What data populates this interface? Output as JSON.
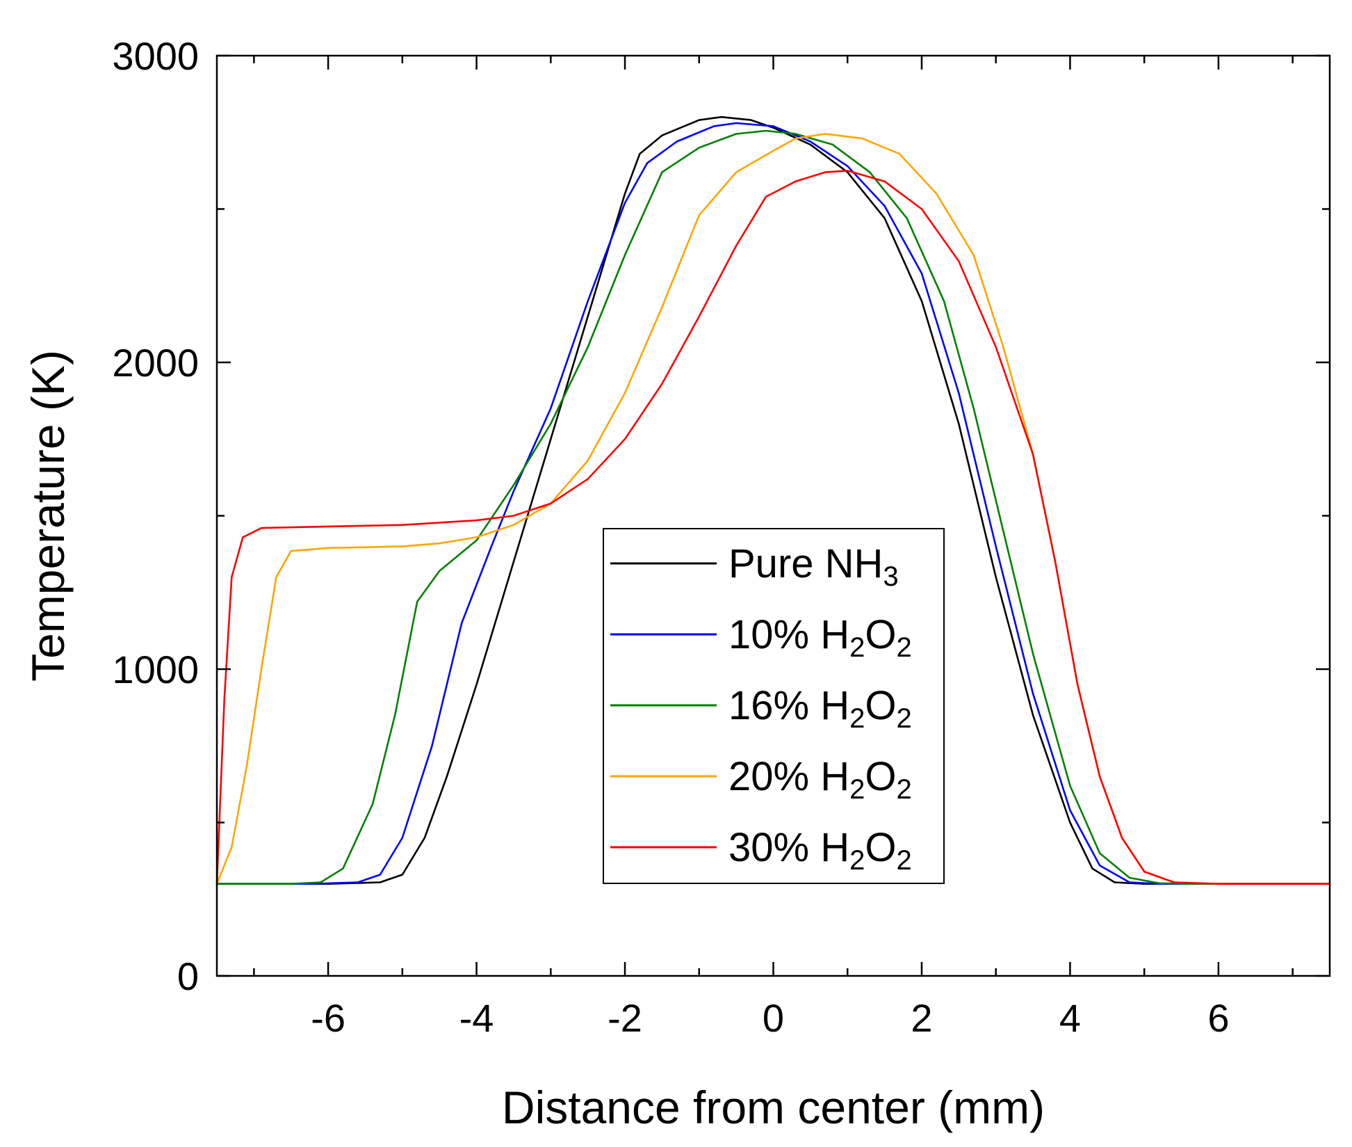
{
  "chart_data": {
    "type": "line",
    "title": "",
    "xlabel": "Distance from center (mm)",
    "ylabel": "Temperature (K)",
    "xlim": [
      -7.5,
      7.5
    ],
    "ylim": [
      0,
      3000
    ],
    "xticks": [
      -6,
      -4,
      -2,
      0,
      2,
      4,
      6
    ],
    "xtick_labels": [
      "-6",
      "-4",
      "-2",
      "0",
      "2",
      "4",
      "6"
    ],
    "yticks": [
      0,
      1000,
      2000,
      3000
    ],
    "ytick_labels": [
      "0",
      "1000",
      "2000",
      "3000"
    ],
    "minor_xtick_step": 1,
    "minor_ytick_step": 500,
    "grid": false,
    "legend_position": "center-right",
    "series": [
      {
        "name": "Pure NH3",
        "label_main": "Pure NH",
        "label_sub": "3",
        "label_tail": "",
        "color": "#000000",
        "points": [
          [
            -7.5,
            300
          ],
          [
            -6,
            300
          ],
          [
            -5.3,
            305
          ],
          [
            -5,
            330
          ],
          [
            -4.7,
            450
          ],
          [
            -4.4,
            650
          ],
          [
            -4,
            950
          ],
          [
            -3.5,
            1350
          ],
          [
            -3,
            1750
          ],
          [
            -2.5,
            2150
          ],
          [
            -2,
            2550
          ],
          [
            -1.8,
            2680
          ],
          [
            -1.5,
            2740
          ],
          [
            -1,
            2790
          ],
          [
            -0.7,
            2800
          ],
          [
            -0.3,
            2790
          ],
          [
            0,
            2765
          ],
          [
            0.5,
            2710
          ],
          [
            1,
            2620
          ],
          [
            1.5,
            2470
          ],
          [
            2,
            2200
          ],
          [
            2.5,
            1800
          ],
          [
            3,
            1300
          ],
          [
            3.5,
            850
          ],
          [
            4,
            500
          ],
          [
            4.3,
            350
          ],
          [
            4.6,
            305
          ],
          [
            5,
            300
          ],
          [
            7.5,
            300
          ]
        ]
      },
      {
        "name": "10% H2O2",
        "label_main": "10% H",
        "label_sub": "2",
        "label_tail": "O",
        "label_sub2": "2",
        "color": "#0000ff",
        "points": [
          [
            -7.5,
            300
          ],
          [
            -6.2,
            300
          ],
          [
            -5.6,
            305
          ],
          [
            -5.3,
            330
          ],
          [
            -5,
            450
          ],
          [
            -4.6,
            750
          ],
          [
            -4.2,
            1150
          ],
          [
            -3.8,
            1400
          ],
          [
            -3.5,
            1580
          ],
          [
            -3,
            1850
          ],
          [
            -2.5,
            2200
          ],
          [
            -2,
            2520
          ],
          [
            -1.7,
            2650
          ],
          [
            -1.3,
            2720
          ],
          [
            -0.8,
            2770
          ],
          [
            -0.5,
            2780
          ],
          [
            0,
            2770
          ],
          [
            0.5,
            2720
          ],
          [
            1,
            2640
          ],
          [
            1.5,
            2510
          ],
          [
            2,
            2290
          ],
          [
            2.5,
            1900
          ],
          [
            3,
            1400
          ],
          [
            3.5,
            920
          ],
          [
            4,
            540
          ],
          [
            4.4,
            360
          ],
          [
            4.8,
            305
          ],
          [
            5.2,
            300
          ],
          [
            7.5,
            300
          ]
        ]
      },
      {
        "name": "16% H2O2",
        "label_main": "16% H",
        "label_sub": "2",
        "label_tail": "O",
        "label_sub2": "2",
        "color": "#008000",
        "points": [
          [
            -7.5,
            300
          ],
          [
            -6.5,
            300
          ],
          [
            -6.1,
            305
          ],
          [
            -5.8,
            350
          ],
          [
            -5.4,
            560
          ],
          [
            -5.1,
            850
          ],
          [
            -4.8,
            1220
          ],
          [
            -4.5,
            1320
          ],
          [
            -4,
            1420
          ],
          [
            -3.5,
            1600
          ],
          [
            -3,
            1800
          ],
          [
            -2.5,
            2050
          ],
          [
            -2,
            2350
          ],
          [
            -1.5,
            2620
          ],
          [
            -1,
            2700
          ],
          [
            -0.5,
            2745
          ],
          [
            -0.1,
            2755
          ],
          [
            0.3,
            2745
          ],
          [
            0.8,
            2710
          ],
          [
            1.3,
            2620
          ],
          [
            1.8,
            2470
          ],
          [
            2.3,
            2200
          ],
          [
            2.7,
            1850
          ],
          [
            3,
            1550
          ],
          [
            3.5,
            1050
          ],
          [
            4,
            620
          ],
          [
            4.4,
            400
          ],
          [
            4.8,
            320
          ],
          [
            5.2,
            302
          ],
          [
            5.6,
            300
          ],
          [
            7.5,
            300
          ]
        ]
      },
      {
        "name": "20% H2O2",
        "label_main": "20% H",
        "label_sub": "2",
        "label_tail": "O",
        "label_sub2": "2",
        "color": "#ffa500",
        "points": [
          [
            -7.5,
            300
          ],
          [
            -7.3,
            420
          ],
          [
            -7.1,
            680
          ],
          [
            -6.9,
            1000
          ],
          [
            -6.7,
            1300
          ],
          [
            -6.5,
            1385
          ],
          [
            -6,
            1395
          ],
          [
            -5,
            1400
          ],
          [
            -4.5,
            1410
          ],
          [
            -4,
            1430
          ],
          [
            -3.5,
            1470
          ],
          [
            -3,
            1540
          ],
          [
            -2.5,
            1680
          ],
          [
            -2,
            1900
          ],
          [
            -1.5,
            2180
          ],
          [
            -1,
            2480
          ],
          [
            -0.5,
            2620
          ],
          [
            0,
            2690
          ],
          [
            0.3,
            2730
          ],
          [
            0.7,
            2745
          ],
          [
            1.2,
            2730
          ],
          [
            1.7,
            2680
          ],
          [
            2.2,
            2550
          ],
          [
            2.7,
            2350
          ],
          [
            3.1,
            2050
          ],
          [
            3.5,
            1700
          ],
          [
            3.8,
            1350
          ],
          [
            4.1,
            950
          ],
          [
            4.4,
            650
          ],
          [
            4.7,
            450
          ],
          [
            5,
            340
          ],
          [
            5.4,
            305
          ],
          [
            6,
            300
          ],
          [
            7.5,
            300
          ]
        ]
      },
      {
        "name": "30% H2O2",
        "label_main": "30% H",
        "label_sub": "2",
        "label_tail": "O",
        "label_sub2": "2",
        "color": "#ff0000",
        "points": [
          [
            -7.5,
            300
          ],
          [
            -7.4,
            900
          ],
          [
            -7.3,
            1300
          ],
          [
            -7.15,
            1430
          ],
          [
            -6.9,
            1460
          ],
          [
            -6,
            1465
          ],
          [
            -5,
            1470
          ],
          [
            -4,
            1485
          ],
          [
            -3.5,
            1500
          ],
          [
            -3,
            1540
          ],
          [
            -2.5,
            1620
          ],
          [
            -2,
            1750
          ],
          [
            -1.5,
            1930
          ],
          [
            -1,
            2150
          ],
          [
            -0.5,
            2380
          ],
          [
            -0.1,
            2540
          ],
          [
            0.3,
            2590
          ],
          [
            0.7,
            2620
          ],
          [
            1,
            2625
          ],
          [
            1.5,
            2590
          ],
          [
            2,
            2500
          ],
          [
            2.5,
            2330
          ],
          [
            3,
            2050
          ],
          [
            3.5,
            1700
          ],
          [
            3.8,
            1350
          ],
          [
            4.1,
            950
          ],
          [
            4.4,
            650
          ],
          [
            4.7,
            450
          ],
          [
            5,
            340
          ],
          [
            5.4,
            305
          ],
          [
            6,
            300
          ],
          [
            7.5,
            300
          ]
        ]
      }
    ]
  }
}
